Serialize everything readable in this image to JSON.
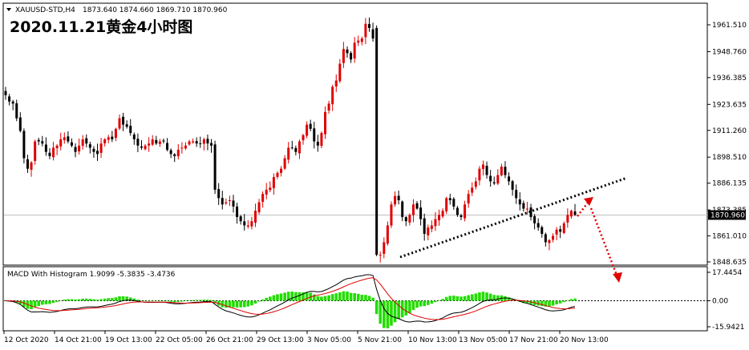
{
  "header": {
    "symbol": "XAUUSD-STD,H4",
    "ohlc": "1873.640 1874.660 1869.710 1870.960",
    "title": "2020.11.21黄金4小时图"
  },
  "chart_data": [
    {
      "type": "candlestick",
      "title": "2020.11.21黄金4小时图",
      "symbol": "XAUUSD-STD,H4",
      "ylim": [
        1846.5,
        1968.0
      ],
      "y_ticks": [
        "1961.510",
        "1948.760",
        "1936.385",
        "1923.635",
        "1911.260",
        "1898.510",
        "1886.135",
        "1873.385",
        "1861.010",
        "1848.635"
      ],
      "y_tick_values": [
        1961.51,
        1948.76,
        1936.385,
        1923.635,
        1911.26,
        1898.51,
        1886.135,
        1873.385,
        1861.01,
        1848.635
      ],
      "current_price_label": "1870.960",
      "current_price": 1870.96,
      "x_labels": [
        "12 Oct 2020",
        "14 Oct 21:00",
        "19 Oct 13:00",
        "22 Oct 05:00",
        "26 Oct 21:00",
        "29 Oct 13:00",
        "3 Nov 05:00",
        "5 Nov 21:00",
        "10 Nov 13:00",
        "13 Nov 05:00",
        "17 Nov 21:00",
        "20 Nov 13:00"
      ],
      "close": [
        1928,
        1925,
        1924,
        1917,
        1911,
        1898,
        1893,
        1896,
        1906,
        1906,
        1905,
        1901,
        1899,
        1903,
        1904,
        1907,
        1908,
        1906,
        1904,
        1901,
        1904,
        1907,
        1905,
        1903,
        1901,
        1900,
        1905,
        1907,
        1908,
        1907,
        1912,
        1917,
        1914,
        1913,
        1910,
        1907,
        1904,
        1903,
        1904,
        1905,
        1907,
        1905,
        1906,
        1906,
        1902,
        1900,
        1899,
        1902,
        1903,
        1904,
        1906,
        1906,
        1905,
        1905,
        1907,
        1905,
        1904,
        1883,
        1879,
        1876,
        1877,
        1878,
        1875,
        1870,
        1868,
        1866,
        1866,
        1868,
        1873,
        1877,
        1881,
        1883,
        1884,
        1889,
        1891,
        1893,
        1898,
        1903,
        1903,
        1901,
        1906,
        1909,
        1914,
        1912,
        1906,
        1904,
        1910,
        1920,
        1924,
        1932,
        1935,
        1943,
        1950,
        1948,
        1945,
        1953,
        1954,
        1955,
        1962,
        1960,
        1955,
        1852,
        1852,
        1858,
        1866,
        1876,
        1880,
        1878,
        1870,
        1868,
        1871,
        1876,
        1874,
        1869,
        1862,
        1865,
        1866,
        1869,
        1871,
        1873,
        1879,
        1878,
        1875,
        1871,
        1870,
        1876,
        1881,
        1884,
        1887,
        1893,
        1895,
        1890,
        1887,
        1886,
        1890,
        1894,
        1890,
        1887,
        1883,
        1879,
        1876,
        1874,
        1874,
        1870,
        1867,
        1865,
        1862,
        1858,
        1859,
        1861,
        1864,
        1863,
        1867,
        1871,
        1873,
        1871
      ],
      "macd_indicator": {
        "label": "MACD With Histogram 1.9099 -5.3835 -3.4736",
        "y_ticks": [
          "17.4454",
          "0.00",
          "-15.9421"
        ],
        "y_tick_values": [
          17.4454,
          0.0,
          -15.9421
        ]
      },
      "trendline_color": "#000000",
      "arrow_color": "#e00000",
      "bull_color": "#e00000",
      "bear_color": "#000000",
      "hist_color": "#22dd00",
      "macd_line_color": "#000000",
      "signal_line_color": "#e00000"
    }
  ]
}
